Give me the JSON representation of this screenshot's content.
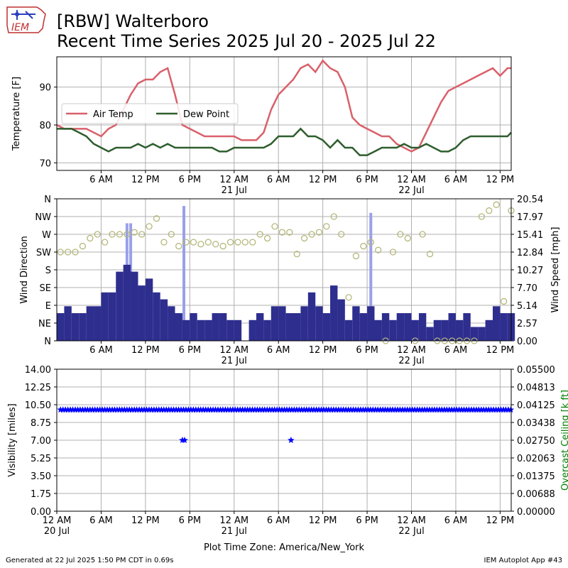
{
  "logo": {
    "text": "IEM",
    "name": "iem-logo"
  },
  "title": {
    "line1": "[RBW] Walterboro",
    "line2": "Recent Time Series 2025 Jul 20 - 2025 Jul 22"
  },
  "footer": {
    "generated": "Generated at 22 Jul 2025 1:50 PM CDT in 0.69s",
    "app": "IEM Autoplot App #43",
    "timezone": "Plot Time Zone: America/New_York"
  },
  "colors": {
    "air_temp": "#d9606a",
    "dew_point": "#2e5e2e",
    "wind_speed": "#2e2e8f",
    "wind_gust": "#9aa0e8",
    "wind_dir": "#b5b77a",
    "visibility": "#0000ff",
    "ceiling_label": "#008000",
    "grid": "#b0b0b0"
  },
  "chart_data": [
    {
      "type": "line",
      "panel": "temperature",
      "ylabel": "Temperature [F]",
      "xlim": [
        0,
        61.5
      ],
      "ylim": [
        68,
        98
      ],
      "yticks": [
        70,
        80,
        90
      ],
      "x_unit": "hours since 2025-07-20 00:00",
      "legend": {
        "position": "center-left",
        "entries": [
          "Air Temp",
          "Dew Point"
        ]
      },
      "series": [
        {
          "name": "Air Temp",
          "x": [
            0,
            1,
            2,
            3,
            4,
            5,
            6,
            7,
            8,
            9,
            10,
            11,
            12,
            13,
            14,
            15,
            16,
            16.5,
            17,
            18,
            19,
            20,
            21,
            22,
            23,
            24,
            25,
            26,
            27,
            28,
            29,
            30,
            31,
            32,
            33,
            34,
            35,
            36,
            37,
            38,
            39,
            40,
            41,
            42,
            43,
            44,
            45,
            45.5,
            46,
            47,
            48,
            49,
            50,
            51,
            52,
            53,
            54,
            55,
            56,
            57,
            58,
            59,
            60,
            60.5,
            61,
            61.5
          ],
          "values": [
            80,
            79,
            79,
            79,
            79,
            78,
            77,
            79,
            80,
            84,
            88,
            91,
            92,
            92,
            94,
            95,
            88,
            84,
            80,
            79,
            78,
            77,
            77,
            77,
            77,
            77,
            76,
            76,
            76,
            78,
            84,
            88,
            90,
            92,
            95,
            96,
            94,
            97,
            95,
            94,
            90,
            82,
            80,
            79,
            78,
            77,
            77,
            76,
            75,
            74,
            73,
            74,
            78,
            82,
            86,
            89,
            90,
            91,
            92,
            93,
            94,
            95,
            93,
            94,
            95,
            95
          ]
        },
        {
          "name": "Dew Point",
          "x": [
            0,
            1,
            2,
            3,
            4,
            5,
            6,
            7,
            8,
            9,
            10,
            11,
            12,
            13,
            14,
            15,
            16,
            17,
            18,
            19,
            20,
            21,
            22,
            23,
            24,
            25,
            26,
            27,
            28,
            29,
            30,
            31,
            32,
            33,
            34,
            35,
            36,
            37,
            38,
            39,
            40,
            41,
            42,
            43,
            44,
            45,
            46,
            47,
            48,
            49,
            50,
            51,
            52,
            53,
            54,
            55,
            56,
            57,
            58,
            59,
            60,
            61,
            61.5
          ],
          "values": [
            79,
            79,
            79,
            78,
            77,
            75,
            74,
            73,
            74,
            74,
            74,
            75,
            74,
            75,
            74,
            75,
            74,
            74,
            74,
            74,
            74,
            74,
            73,
            73,
            74,
            74,
            74,
            74,
            74,
            75,
            77,
            77,
            77,
            79,
            77,
            77,
            76,
            74,
            76,
            74,
            74,
            72,
            72,
            73,
            74,
            74,
            74,
            75,
            74,
            74,
            75,
            74,
            73,
            73,
            74,
            76,
            77,
            77,
            77,
            77,
            77,
            77,
            78
          ]
        }
      ]
    },
    {
      "type": "bar",
      "panel": "wind",
      "ylabel": "Wind Direction",
      "y2label": "Wind Speed [mph]",
      "xlim": [
        0,
        61.5
      ],
      "direction_ticks": [
        "N",
        "NE",
        "E",
        "SE",
        "S",
        "SW",
        "W",
        "NW",
        "N"
      ],
      "speed_ticks": [
        "0.00",
        "2.57",
        "5.14",
        "7.70",
        "10.27",
        "12.84",
        "15.41",
        "17.97",
        "20.54"
      ],
      "speed_max": 20.54,
      "series": [
        {
          "name": "Wind Speed",
          "x": [
            0,
            1,
            2,
            3,
            4,
            5,
            6,
            7,
            8,
            9,
            10,
            11,
            12,
            13,
            14,
            15,
            16,
            17,
            18,
            19,
            20,
            21,
            22,
            23,
            24,
            25,
            26,
            27,
            28,
            29,
            30,
            31,
            32,
            33,
            34,
            35,
            36,
            37,
            38,
            39,
            40,
            41,
            42,
            43,
            44,
            45,
            46,
            47,
            48,
            49,
            50,
            51,
            52,
            53,
            54,
            55,
            56,
            57,
            58,
            59,
            60,
            61
          ],
          "values": [
            4,
            5,
            4,
            4,
            5,
            5,
            7,
            7,
            10,
            11,
            10,
            8,
            9,
            7,
            6,
            5,
            4,
            3,
            4,
            3,
            3,
            4,
            4,
            3,
            3,
            0,
            3,
            4,
            3,
            5,
            5,
            4,
            4,
            5,
            7,
            5,
            4,
            8,
            6,
            3,
            5,
            4,
            5,
            3,
            4,
            3,
            4,
            4,
            3,
            4,
            2,
            3,
            3,
            4,
            3,
            4,
            2,
            2,
            3,
            5,
            4,
            4
          ]
        },
        {
          "name": "Wind Gust",
          "x": [
            9.5,
            10,
            17.2,
            42.5
          ],
          "values": [
            17,
            17,
            19.5,
            18.5
          ]
        },
        {
          "name": "Wind Direction",
          "x": [
            0,
            1,
            2,
            3,
            4,
            5,
            6,
            7,
            8,
            9,
            10,
            11,
            12,
            13,
            14,
            15,
            16,
            17,
            18,
            19,
            20,
            21,
            22,
            23,
            24,
            25,
            26,
            27,
            28,
            29,
            30,
            31,
            32,
            33,
            34,
            35,
            36,
            37,
            38,
            39,
            40,
            41,
            42,
            43,
            44,
            45,
            46,
            47,
            48,
            49,
            50,
            51,
            52,
            53,
            54,
            55,
            56,
            57,
            58,
            59,
            60,
            61
          ],
          "values": [
            225,
            225,
            225,
            240,
            260,
            270,
            250,
            270,
            270,
            270,
            275,
            270,
            290,
            310,
            250,
            270,
            240,
            250,
            250,
            245,
            250,
            245,
            240,
            250,
            250,
            250,
            250,
            270,
            260,
            290,
            275,
            275,
            220,
            260,
            270,
            275,
            290,
            315,
            270,
            110,
            215,
            240,
            250,
            230,
            0,
            225,
            270,
            260,
            0,
            270,
            220,
            0,
            0,
            0,
            0,
            0,
            0,
            315,
            330,
            345,
            100,
            330
          ]
        }
      ]
    },
    {
      "type": "scatter",
      "panel": "visibility",
      "ylabel": "Visibility [miles]",
      "y2label": "Overcast Ceiling [k ft]",
      "xlim": [
        0,
        61.5
      ],
      "ylim": [
        0,
        14
      ],
      "yticks": [
        "0.00",
        "1.75",
        "3.50",
        "5.25",
        "7.00",
        "8.75",
        "10.50",
        "12.25",
        "14.00"
      ],
      "y2ticks": [
        "0.00000",
        "0.00688",
        "0.01375",
        "0.02063",
        "0.02750",
        "0.03438",
        "0.04125",
        "0.04813",
        "0.05500"
      ],
      "xticks": [
        {
          "x": 0,
          "line1": "12 AM",
          "line2": "20 Jul"
        },
        {
          "x": 6,
          "line1": "6 AM",
          "line2": ""
        },
        {
          "x": 12,
          "line1": "12 PM",
          "line2": ""
        },
        {
          "x": 18,
          "line1": "6 PM",
          "line2": ""
        },
        {
          "x": 24,
          "line1": "12 AM",
          "line2": "21 Jul"
        },
        {
          "x": 30,
          "line1": "6 AM",
          "line2": ""
        },
        {
          "x": 36,
          "line1": "12 PM",
          "line2": ""
        },
        {
          "x": 42,
          "line1": "6 PM",
          "line2": ""
        },
        {
          "x": 48,
          "line1": "12 AM",
          "line2": "22 Jul"
        },
        {
          "x": 54,
          "line1": "6 AM",
          "line2": ""
        },
        {
          "x": 60,
          "line1": "12 PM",
          "line2": ""
        }
      ],
      "series": [
        {
          "name": "Visibility",
          "constant_value": 10,
          "constant_range": [
            0.5,
            61.5
          ],
          "constant_step_hours": 0.333,
          "x": [
            17,
            17.3,
            31.7
          ],
          "values": [
            7,
            7,
            7
          ]
        }
      ]
    }
  ]
}
